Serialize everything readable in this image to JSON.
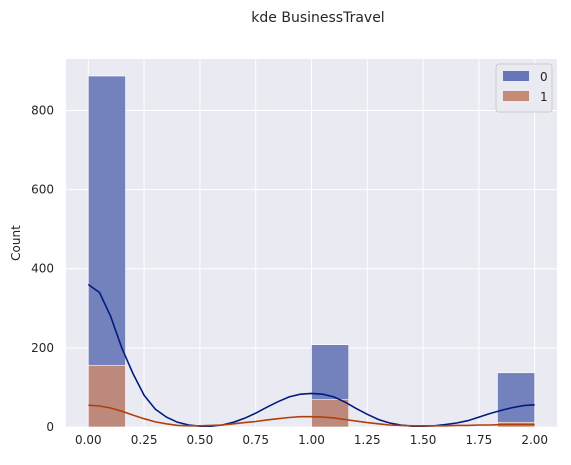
{
  "chart_data": {
    "type": "bar",
    "title": "kde BusinessTravel",
    "xlabel": "",
    "ylabel": "Count",
    "xlim": [
      -0.1,
      2.1
    ],
    "ylim": [
      0,
      930
    ],
    "x_ticks": [
      "0.00",
      "0.25",
      "0.50",
      "0.75",
      "1.00",
      "1.25",
      "1.50",
      "1.75",
      "2.00"
    ],
    "y_ticks": [
      "0",
      "200",
      "400",
      "600",
      "800"
    ],
    "grid": true,
    "legend_position": "top-right",
    "bin_width": 0.1667,
    "series": [
      {
        "name": "0",
        "color": "#6676b6",
        "kde_color": "#001c7f",
        "bins": [
          {
            "x": 0.0,
            "count": 887
          },
          {
            "x": 1.0,
            "count": 208
          },
          {
            "x": 1.8333,
            "count": 137
          }
        ],
        "kde": [
          [
            0.0,
            360
          ],
          [
            0.05,
            340
          ],
          [
            0.1,
            280
          ],
          [
            0.15,
            200
          ],
          [
            0.2,
            135
          ],
          [
            0.25,
            80
          ],
          [
            0.3,
            45
          ],
          [
            0.35,
            25
          ],
          [
            0.4,
            12
          ],
          [
            0.45,
            5
          ],
          [
            0.5,
            2
          ],
          [
            0.55,
            2
          ],
          [
            0.6,
            5
          ],
          [
            0.65,
            12
          ],
          [
            0.7,
            22
          ],
          [
            0.75,
            35
          ],
          [
            0.8,
            50
          ],
          [
            0.85,
            64
          ],
          [
            0.9,
            76
          ],
          [
            0.95,
            83
          ],
          [
            1.0,
            85
          ],
          [
            1.05,
            83
          ],
          [
            1.1,
            76
          ],
          [
            1.15,
            63
          ],
          [
            1.2,
            47
          ],
          [
            1.25,
            32
          ],
          [
            1.3,
            19
          ],
          [
            1.35,
            10
          ],
          [
            1.4,
            5
          ],
          [
            1.45,
            2
          ],
          [
            1.5,
            2
          ],
          [
            1.55,
            3
          ],
          [
            1.6,
            6
          ],
          [
            1.65,
            10
          ],
          [
            1.7,
            16
          ],
          [
            1.75,
            25
          ],
          [
            1.8,
            34
          ],
          [
            1.85,
            42
          ],
          [
            1.9,
            49
          ],
          [
            1.95,
            54
          ],
          [
            2.0,
            56
          ]
        ]
      },
      {
        "name": "1",
        "color": "#c58a75",
        "kde_color": "#b1400d",
        "bins": [
          {
            "x": 0.0,
            "count": 156
          },
          {
            "x": 1.0,
            "count": 69
          },
          {
            "x": 1.8333,
            "count": 12
          }
        ],
        "kde": [
          [
            0.0,
            55
          ],
          [
            0.05,
            53
          ],
          [
            0.1,
            48
          ],
          [
            0.15,
            40
          ],
          [
            0.2,
            30
          ],
          [
            0.25,
            21
          ],
          [
            0.3,
            13
          ],
          [
            0.35,
            8
          ],
          [
            0.4,
            4
          ],
          [
            0.45,
            3
          ],
          [
            0.5,
            3
          ],
          [
            0.55,
            4
          ],
          [
            0.6,
            5
          ],
          [
            0.65,
            8
          ],
          [
            0.7,
            11
          ],
          [
            0.75,
            14
          ],
          [
            0.8,
            18
          ],
          [
            0.85,
            21
          ],
          [
            0.9,
            24
          ],
          [
            0.95,
            26
          ],
          [
            1.0,
            26
          ],
          [
            1.05,
            25
          ],
          [
            1.1,
            23
          ],
          [
            1.15,
            19
          ],
          [
            1.2,
            15
          ],
          [
            1.25,
            11
          ],
          [
            1.3,
            8
          ],
          [
            1.35,
            5
          ],
          [
            1.4,
            4
          ],
          [
            1.45,
            3
          ],
          [
            1.5,
            3
          ],
          [
            1.55,
            3
          ],
          [
            1.6,
            3
          ],
          [
            1.65,
            4
          ],
          [
            1.7,
            4
          ],
          [
            1.75,
            5
          ],
          [
            1.8,
            5
          ],
          [
            1.85,
            6
          ],
          [
            1.9,
            6
          ],
          [
            1.95,
            6
          ],
          [
            2.0,
            6
          ]
        ]
      }
    ]
  }
}
